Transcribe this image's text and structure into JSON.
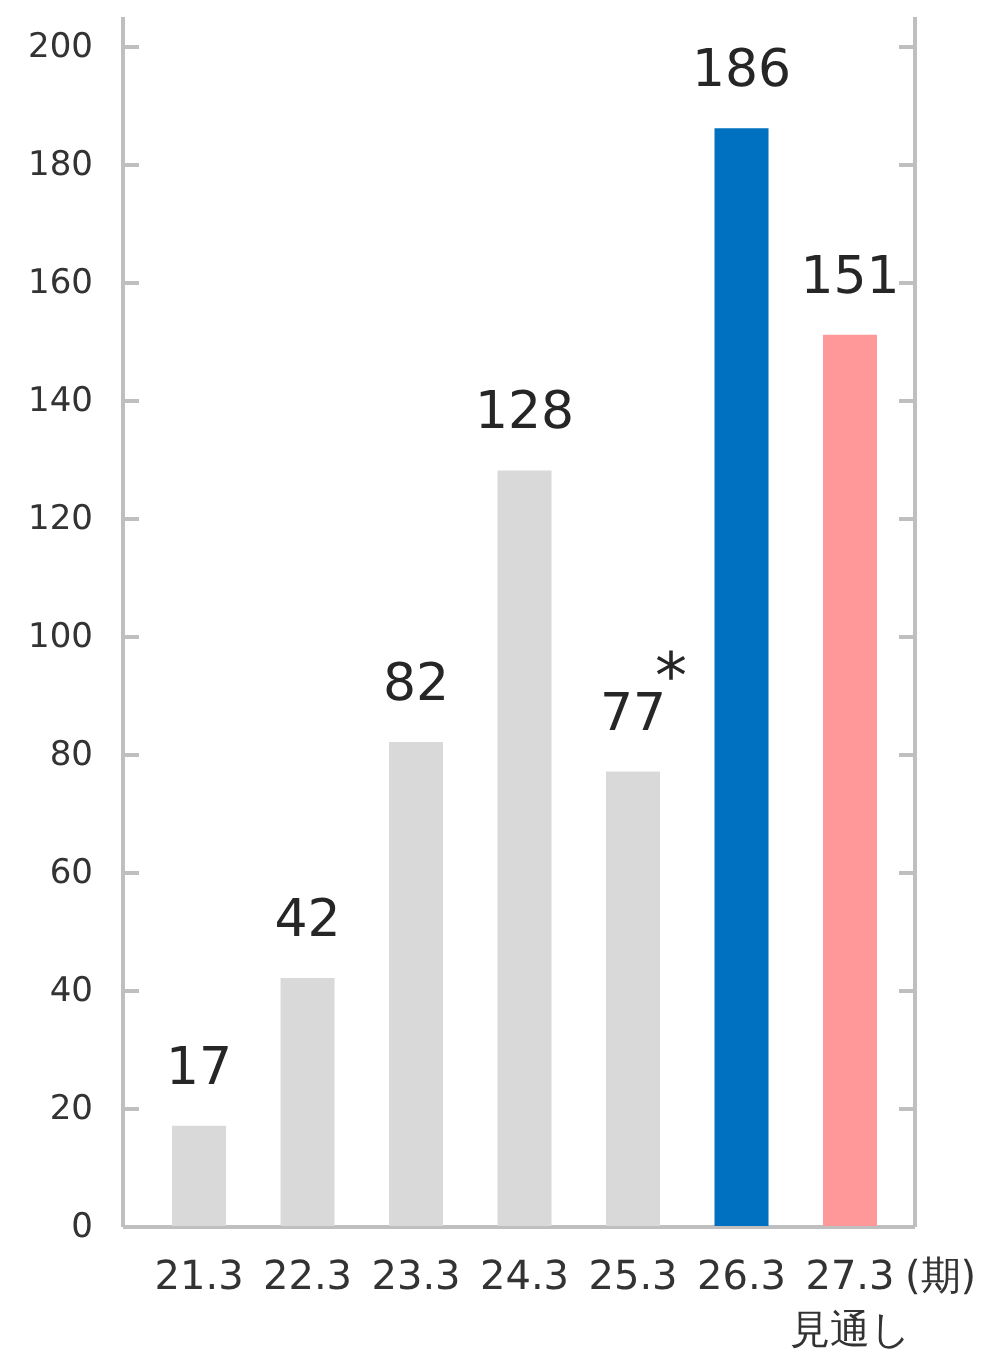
{
  "chart_data": {
    "type": "bar",
    "categories": [
      "21.3",
      "22.3",
      "23.3",
      "24.3",
      "25.3",
      "26.3",
      "27.3\n見通し"
    ],
    "values": [
      17,
      42,
      82,
      128,
      77,
      186,
      151
    ],
    "colors": [
      "#d9d9d9",
      "#d9d9d9",
      "#d9d9d9",
      "#d9d9d9",
      "#d9d9d9",
      "#0070c0",
      "#ff9999"
    ],
    "xlabel": "(期)",
    "ylim": [
      0,
      205
    ],
    "yticks": [
      0,
      20,
      40,
      60,
      80,
      100,
      120,
      140,
      160,
      180,
      200
    ],
    "data_labels": true,
    "annotations": [
      {
        "text": "*",
        "x": "25.3",
        "y": 77
      }
    ]
  }
}
